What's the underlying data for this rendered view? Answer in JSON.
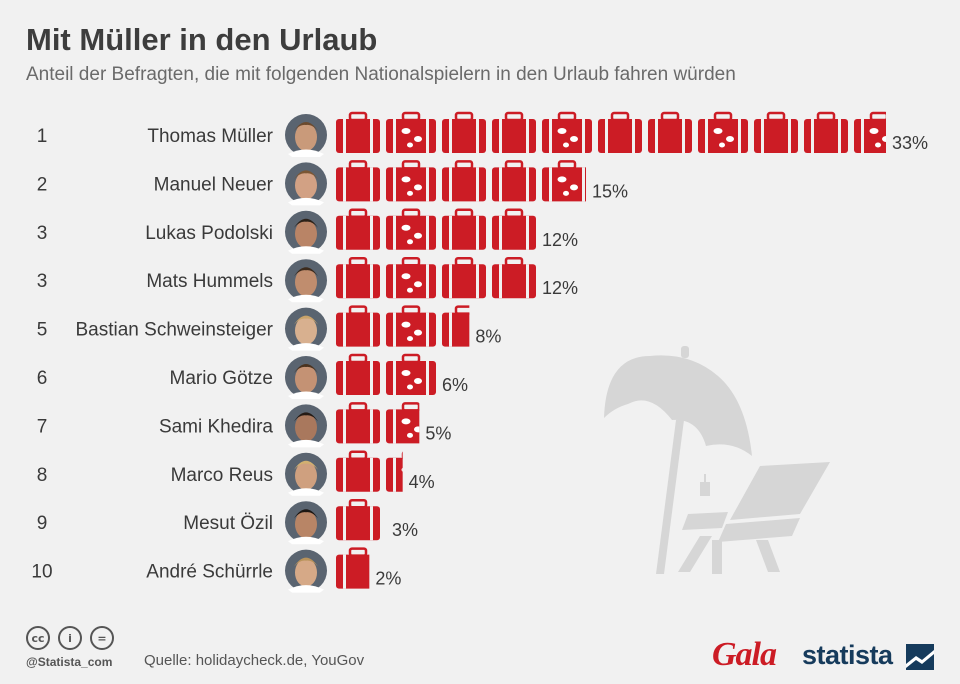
{
  "header": {
    "title": "Mit Müller in den Urlaub",
    "subtitle": "Anteil der Befragten, die mit folgenden Nationalspielern in den Urlaub fahren würden"
  },
  "chart_data": {
    "type": "bar",
    "orientation": "horizontal",
    "unit": "%",
    "value_suffix": "%",
    "ranks": [
      "1",
      "2",
      "3",
      "3",
      "5",
      "6",
      "7",
      "8",
      "9",
      "10"
    ],
    "categories": [
      "Thomas Müller",
      "Manuel Neuer",
      "Lukas Podolski",
      "Mats Hummels",
      "Bastian Schweinsteiger",
      "Mario Götze",
      "Sami Khedira",
      "Marco Reus",
      "Mesut Özil",
      "André Schürrle"
    ],
    "values": [
      33,
      15,
      12,
      12,
      8,
      6,
      5,
      4,
      3,
      2
    ],
    "bar_color": "#cc1c25",
    "bar_symbol": "suitcase-icon",
    "decoration": "beach-umbrella-deckchair"
  },
  "footer": {
    "license_icons": [
      "cc-icon",
      "attribution-icon",
      "noderivs-icon"
    ],
    "license_glyphs": [
      "cc",
      "i",
      "="
    ],
    "handle": "@Statista_com",
    "source": "Quelle: holidaycheck.de, YouGov",
    "partner_logo": "Gala",
    "brand_logo": "statista"
  },
  "colors": {
    "background": "#f1f1f1",
    "accent": "#cc1c25",
    "brand": "#163b5c",
    "decoration": "#d6d6d6"
  }
}
